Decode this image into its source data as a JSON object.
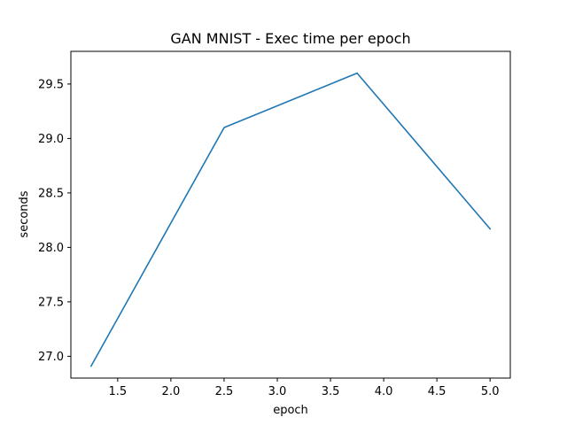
{
  "chart_data": {
    "type": "line",
    "title": "GAN MNIST - Exec time per epoch",
    "xlabel": "epoch",
    "ylabel": "seconds",
    "xlim": [
      1.06,
      5.19
    ],
    "ylim": [
      26.8,
      29.8
    ],
    "xticks": [
      1.5,
      2.0,
      2.5,
      3.0,
      3.5,
      4.0,
      4.5,
      5.0
    ],
    "xtick_labels": [
      "1.5",
      "2.0",
      "2.5",
      "3.0",
      "3.5",
      "4.0",
      "4.5",
      "5.0"
    ],
    "yticks": [
      27.0,
      27.5,
      28.0,
      28.5,
      29.0,
      29.5
    ],
    "ytick_labels": [
      "27.0",
      "27.5",
      "28.0",
      "28.5",
      "29.0",
      "29.5"
    ],
    "grid": false,
    "series": [
      {
        "color": "#1f77b4",
        "x": [
          1.25,
          2.5,
          3.75,
          5.0
        ],
        "y": [
          26.91,
          29.1,
          29.6,
          28.17
        ]
      }
    ]
  }
}
